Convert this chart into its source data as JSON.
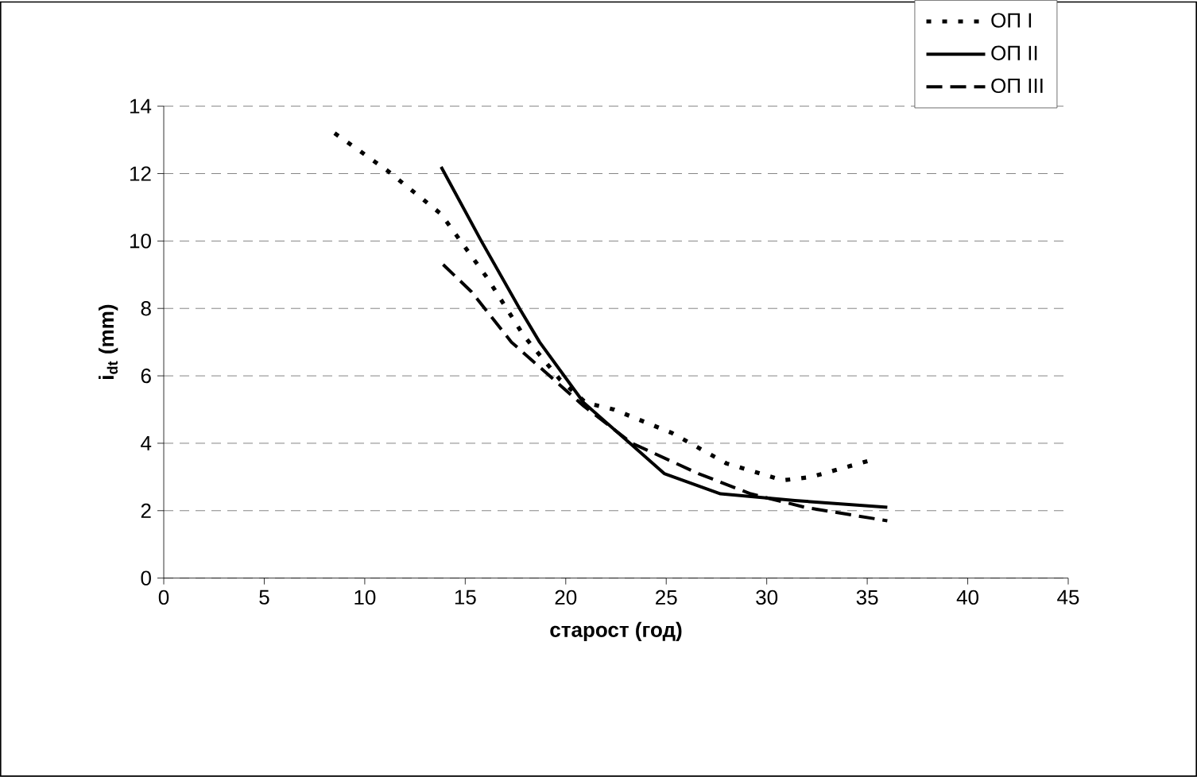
{
  "chart_data": {
    "type": "line",
    "xlabel": "старост (год)",
    "ylabel": "i$_{dt}$ (mm)",
    "xlim": [
      0,
      45
    ],
    "xticks": [
      0,
      5,
      10,
      15,
      20,
      25,
      30,
      35,
      40,
      45
    ],
    "ylim": [
      0,
      14
    ],
    "yticks": [
      0,
      2,
      4,
      6,
      8,
      10,
      12,
      14
    ],
    "grid": "y",
    "legend": "top right",
    "marker": "none",
    "series": [
      {
        "name": "ОП I",
        "color": "#000000",
        "line_style": "dotted",
        "x": [
          8.5,
          11.1,
          13.8,
          16.1,
          17.9,
          19.7,
          21.0,
          22.4,
          25.3,
          28.0,
          30.8,
          32.2,
          35.2
        ],
        "values": [
          13.2,
          12.1,
          10.8,
          8.9,
          7.2,
          5.9,
          5.2,
          5.0,
          4.3,
          3.4,
          2.9,
          3.0,
          3.5
        ]
      },
      {
        "name": "ОП II",
        "color": "#000000",
        "line_style": "solid",
        "x": [
          13.8,
          15.8,
          17.7,
          18.7,
          20.9,
          23.2,
          24.9,
          27.7,
          31.4,
          36.0
        ],
        "values": [
          12.2,
          10.0,
          8.0,
          7.0,
          5.2,
          4.0,
          3.1,
          2.5,
          2.3,
          2.1
        ]
      },
      {
        "name": "ОП III",
        "color": "#000000",
        "line_style": "dashed",
        "x": [
          13.9,
          15.3,
          17.3,
          20.9,
          23.3,
          26.6,
          29.2,
          31.9,
          36.0
        ],
        "values": [
          9.3,
          8.5,
          7.0,
          5.1,
          4.0,
          3.1,
          2.5,
          2.1,
          1.7
        ]
      }
    ]
  }
}
